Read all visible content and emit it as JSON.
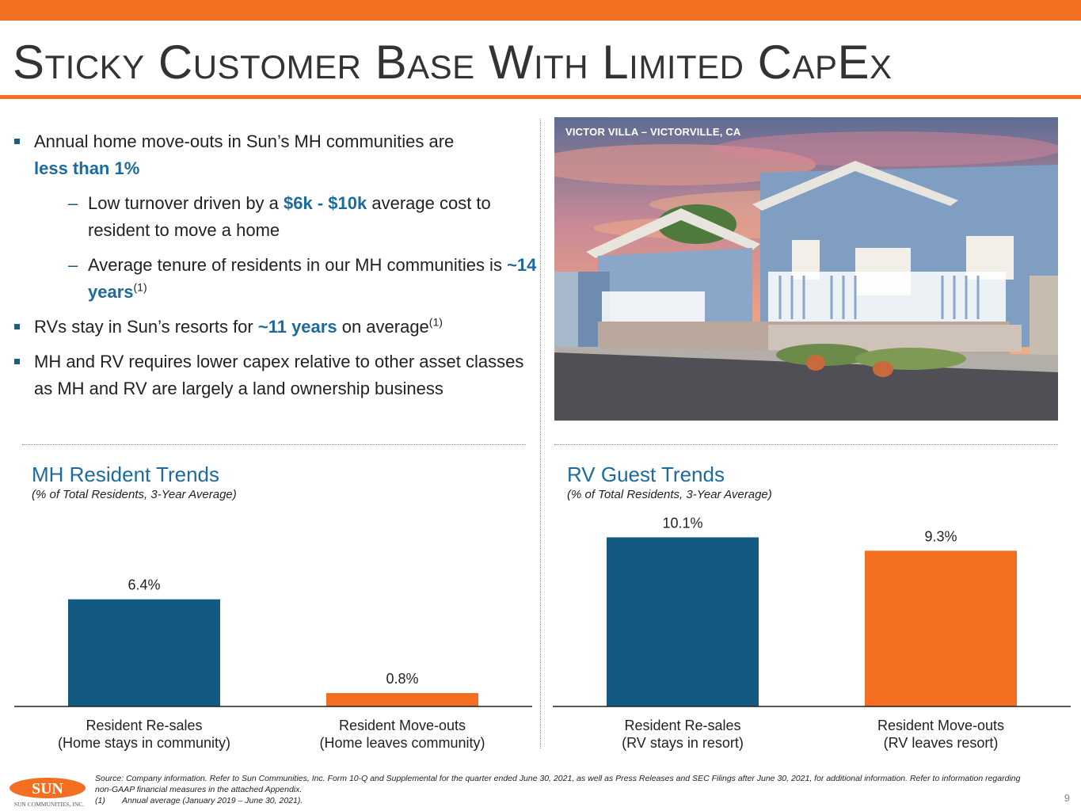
{
  "header": {
    "title": "Sticky Customer Base With Limited CapEx"
  },
  "bullets": {
    "b1": {
      "pre": "Annual home move-outs in Sun’s MH communities are ",
      "hl": "less than 1%"
    },
    "s1": {
      "pre": "Low turnover driven by a ",
      "hl": "$6k - $10k",
      "post": " average cost to resident to move a home"
    },
    "s2": {
      "pre": "Average tenure of residents in our MH communities is ",
      "hl": "~14 years",
      "sup": "(1)"
    },
    "b2": {
      "pre": "RVs stay in Sun’s resorts for ",
      "hl": "~11 years",
      "post": " on average",
      "sup": "(1)"
    },
    "b3": {
      "pre": "MH and RV requires lower capex relative to other asset classes as MH and RV are largely a land ownership business"
    }
  },
  "photo": {
    "caption": "VICTOR VILLA – VICTORVILLE, CA"
  },
  "chart_data": [
    {
      "type": "bar",
      "title": "MH Resident Trends",
      "subtitle": "(% of Total Residents, 3-Year Average)",
      "categories": [
        "Resident Re-sales\n(Home stays in community)",
        "Resident Move-outs\n(Home leaves community)"
      ],
      "values": [
        6.4,
        0.8
      ],
      "value_labels": [
        "6.4%",
        "0.8%"
      ],
      "colors": [
        "#135A82",
        "#F26F21"
      ],
      "ylim": [
        0,
        10.5
      ],
      "grid": false
    },
    {
      "type": "bar",
      "title": "RV Guest Trends",
      "subtitle": "(% of Total Residents, 3-Year Average)",
      "categories": [
        "Resident Re-sales\n(RV stays in resort)",
        "Resident Move-outs\n(RV leaves resort)"
      ],
      "values": [
        10.1,
        9.3
      ],
      "value_labels": [
        "10.1%",
        "9.3%"
      ],
      "colors": [
        "#135A82",
        "#F26F21"
      ],
      "ylim": [
        0,
        10.5
      ],
      "grid": false
    }
  ],
  "footer": {
    "source": "Source: Company information. Refer to Sun Communities, Inc. Form 10-Q and Supplemental for the quarter ended June 30, 2021, as well as Press Releases and SEC Filings after June 30, 2021, for additional information. Refer to information regarding non-GAAP financial measures in the attached Appendix.",
    "note_num": "(1)",
    "note_text": "Annual average (January 2019 – June 30, 2021).",
    "page": "9",
    "logo_word": "SUN",
    "logo_sub": "SUN COMMUNITIES, INC."
  },
  "colors": {
    "accent": "#F26F21",
    "blue": "#135A82",
    "highlight": "#1D6A9E"
  }
}
